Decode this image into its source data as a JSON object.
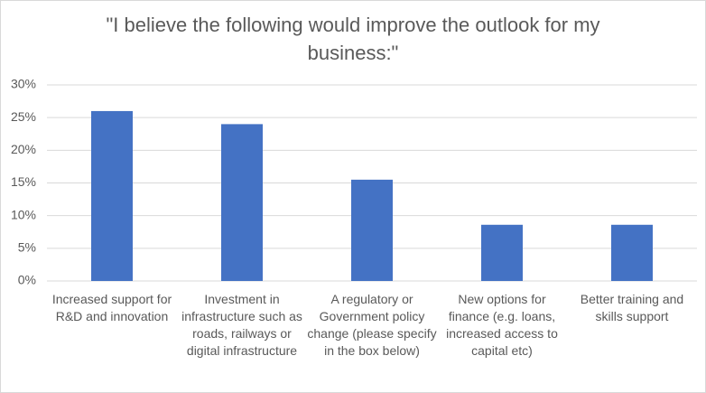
{
  "chart_data": {
    "type": "bar",
    "title": "\"I believe the following would improve the outlook for my business:\"",
    "categories": [
      "Increased support for R&D and innovation",
      "Investment in infrastructure such as roads, railways or digital infrastructure",
      "A regulatory or Government policy change (please specify in the box below)",
      "New options for finance (e.g. loans, increased access to capital etc)",
      "Better training and skills support"
    ],
    "values": [
      26,
      24,
      15.5,
      8.6,
      8.6
    ],
    "color": "#4472c4",
    "ylim": [
      0,
      30
    ],
    "yticks": [
      {
        "value": 0,
        "label": "0%"
      },
      {
        "value": 5,
        "label": "5%"
      },
      {
        "value": 10,
        "label": "10%"
      },
      {
        "value": 15,
        "label": "15%"
      },
      {
        "value": 20,
        "label": "20%"
      },
      {
        "value": 25,
        "label": "25%"
      },
      {
        "value": 30,
        "label": "30%"
      }
    ],
    "grid": true
  }
}
